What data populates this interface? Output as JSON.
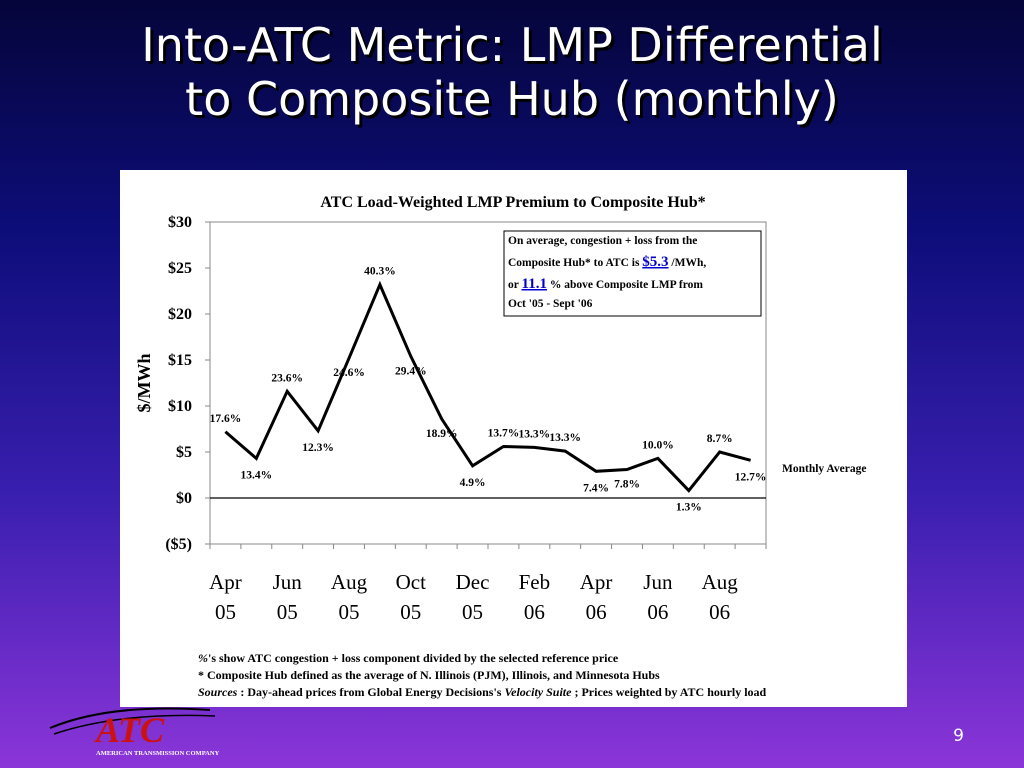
{
  "slide": {
    "title_line1": "Into-ATC Metric: LMP Differential",
    "title_line2": "to Composite Hub (monthly)",
    "page_number": "9",
    "logo_text": "ATC",
    "logo_subtext": "AMERICAN TRANSMISSION COMPANY"
  },
  "chart_data": {
    "type": "line",
    "title": "ATC Load-Weighted LMP Premium to Composite Hub*",
    "ylabel": "$/MWh",
    "xlabel": "",
    "ylim": [
      -5,
      30
    ],
    "yticks": [
      -5,
      0,
      5,
      10,
      15,
      20,
      25,
      30
    ],
    "ytick_labels": [
      "($5)",
      "$0",
      "$5",
      "$10",
      "$15",
      "$20",
      "$25",
      "$30"
    ],
    "x_tick_labels": [
      {
        "month": "Apr",
        "year": "05"
      },
      {
        "month": "Jun",
        "year": "05"
      },
      {
        "month": "Aug",
        "year": "05"
      },
      {
        "month": "Oct",
        "year": "05"
      },
      {
        "month": "Dec",
        "year": "05"
      },
      {
        "month": "Feb",
        "year": "06"
      },
      {
        "month": "Apr",
        "year": "06"
      },
      {
        "month": "Jun",
        "year": "06"
      },
      {
        "month": "Aug",
        "year": "06"
      }
    ],
    "categories": [
      "Apr 05",
      "May 05",
      "Jun 05",
      "Jul 05",
      "Aug 05",
      "Sep 05",
      "Oct 05",
      "Nov 05",
      "Dec 05",
      "Jan 06",
      "Feb 06",
      "Mar 06",
      "Apr 06",
      "May 06",
      "Jun 06",
      "Jul 06",
      "Aug 06",
      "Sep 06"
    ],
    "series": [
      {
        "name": "Monthly Average",
        "values": [
          7.2,
          4.3,
          11.6,
          7.3,
          15.2,
          23.2,
          15.4,
          8.6,
          3.5,
          5.6,
          5.5,
          5.1,
          2.9,
          3.1,
          4.3,
          0.8,
          5.0,
          4.1
        ],
        "labels": [
          "17.6%",
          "13.4%",
          "23.6%",
          "12.3%",
          "24.6%",
          "40.3%",
          "29.4%",
          "18.9%",
          "4.9%",
          "13.7%",
          "13.3%",
          "13.3%",
          "7.4%",
          "7.8%",
          "10.0%",
          "1.3%",
          "8.7%",
          "12.7%"
        ],
        "color": "#000000"
      }
    ],
    "legend_label": "Monthly Average",
    "grid": false,
    "annotation": {
      "line1": "On average, congestion + loss from the",
      "line2_pre": "Composite Hub* to ATC is",
      "value1": "$5.3",
      "line2_post": "/MWh,",
      "line3_pre": "or",
      "value2": "11.1",
      "line3_post": "% above Composite LMP from",
      "line4": "Oct '05 - Sept '06",
      "highlight_color": "#0000cc"
    }
  },
  "footnotes": {
    "line1_symbol": "%",
    "line1_text": "'s show ATC congestion + loss component divided by the selected reference price",
    "line2": "* Composite Hub defined as the average of N. Illinois (PJM), Illinois, and Minnesota Hubs",
    "line3_sources": "Sources",
    "line3_a": ": Day-ahead prices from Global Energy Decisions's",
    "line3_italic": "Velocity Suite",
    "line3_b": "; Prices weighted by ATC hourly load"
  }
}
